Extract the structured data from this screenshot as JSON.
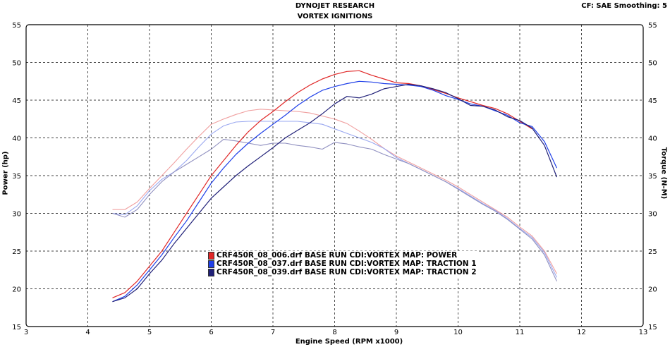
{
  "header": {
    "title1": "DYNOJET RESEARCH",
    "title2": "VORTEX IGNITIONS",
    "settings": "CF: SAE  Smoothing: 5"
  },
  "chart_data": {
    "type": "line",
    "title": "DYNOJET RESEARCH / VORTEX IGNITIONS",
    "xlabel": "Engine Speed (RPM x1000)",
    "ylabel": "Power (hp)",
    "y2label": "Torque (N-M)",
    "xlim": [
      3,
      13
    ],
    "ylim": [
      15,
      55
    ],
    "y2lim": [
      15,
      55
    ],
    "xticks": [
      "3",
      "4",
      "5",
      "6",
      "7",
      "8",
      "9",
      "10",
      "11",
      "12",
      "13"
    ],
    "yticks": [
      "15",
      "20",
      "25",
      "30",
      "35",
      "40",
      "45",
      "50",
      "55"
    ],
    "grid": true,
    "legend_position": "bottom-center",
    "x": [
      4.4,
      4.6,
      4.8,
      5.0,
      5.2,
      5.4,
      5.6,
      5.8,
      6.0,
      6.2,
      6.4,
      6.6,
      6.8,
      7.0,
      7.2,
      7.4,
      7.6,
      7.8,
      8.0,
      8.2,
      8.4,
      8.6,
      8.8,
      9.0,
      9.2,
      9.4,
      9.6,
      9.8,
      10.0,
      10.2,
      10.4,
      10.6,
      10.8,
      11.0,
      11.2,
      11.4,
      11.6
    ],
    "series": [
      {
        "name": "CRF450R_08_006.drf BASE RUN  CDI:VORTEX MAP: POWER",
        "color": "#e02828",
        "torque_color": "#f0a0a0",
        "power": [
          18.8,
          19.5,
          21,
          23,
          25,
          27.5,
          30,
          32.5,
          35,
          37,
          39,
          40.8,
          42.3,
          43.5,
          44.8,
          46,
          47,
          47.8,
          48.4,
          48.8,
          48.9,
          48.3,
          47.8,
          47.3,
          47.2,
          46.9,
          46.4,
          45.9,
          45.3,
          44.8,
          44.3,
          43.9,
          43.2,
          42.2,
          41.2,
          null,
          null
        ],
        "torque": [
          30.5,
          30.5,
          31.5,
          33.3,
          35,
          36.7,
          38.5,
          40.2,
          41.8,
          42.5,
          43.1,
          43.6,
          43.8,
          43.7,
          43.6,
          43.5,
          43.3,
          42.9,
          42.5,
          41.9,
          40.9,
          39.8,
          38.6,
          37.6,
          36.8,
          36,
          35.2,
          34.4,
          33.5,
          32.5,
          31.5,
          30.5,
          29.5,
          28.2,
          27,
          25,
          22
        ]
      },
      {
        "name": "CRF450R_08_037.drf BASE RUN  CDI:VORTEX MAP: TRACTION 1",
        "color": "#2040e8",
        "torque_color": "#9aa8f0",
        "power": [
          18.3,
          19,
          20.5,
          22.5,
          24.5,
          26.8,
          29,
          31.5,
          34,
          36,
          37.8,
          39.3,
          40.6,
          41.8,
          43,
          44.3,
          45.4,
          46.3,
          46.8,
          47.2,
          47.5,
          47.4,
          47.2,
          47.1,
          47,
          46.8,
          46.3,
          45.6,
          45.1,
          44.5,
          44.2,
          43.6,
          43,
          42,
          41.5,
          39.5,
          36
        ],
        "torque": [
          30,
          29.8,
          31,
          33,
          34.5,
          35.5,
          37,
          38.8,
          40.5,
          41.6,
          42.1,
          42.2,
          42.2,
          42.2,
          42.2,
          42.2,
          42,
          41.8,
          41.2,
          40.6,
          40,
          39.4,
          38.6,
          37.4,
          36.6,
          35.8,
          35,
          34.2,
          33.3,
          32.3,
          31.3,
          30.4,
          29.3,
          28,
          26.8,
          24.8,
          21.5
        ]
      },
      {
        "name": "CRF450R_08_039.drf BASE RUN  CDI:VORTEX MAP: TRACTION 2",
        "color": "#202078",
        "torque_color": "#9090c0",
        "power": [
          18.3,
          18.8,
          20,
          22,
          23.8,
          26,
          28,
          30,
          32,
          33.5,
          35,
          36.3,
          37.5,
          38.7,
          40,
          41,
          42,
          43.2,
          44.5,
          45.5,
          45.3,
          45.8,
          46.5,
          46.8,
          47.1,
          46.9,
          46.5,
          46,
          45.2,
          44.3,
          44.2,
          43.7,
          42.8,
          42.3,
          41.3,
          39,
          34.8
        ],
        "torque": [
          30,
          29.5,
          30.5,
          32.5,
          34.2,
          35.5,
          36.5,
          37.5,
          38.5,
          39.8,
          39.6,
          39.3,
          39,
          39.3,
          39.3,
          39,
          38.8,
          38.5,
          39.4,
          39.2,
          38.8,
          38.5,
          37.8,
          37.2,
          36.6,
          35.8,
          35,
          34.2,
          33.2,
          32.2,
          31.2,
          30.3,
          29.2,
          27.9,
          26.6,
          24.5,
          21
        ]
      }
    ]
  }
}
